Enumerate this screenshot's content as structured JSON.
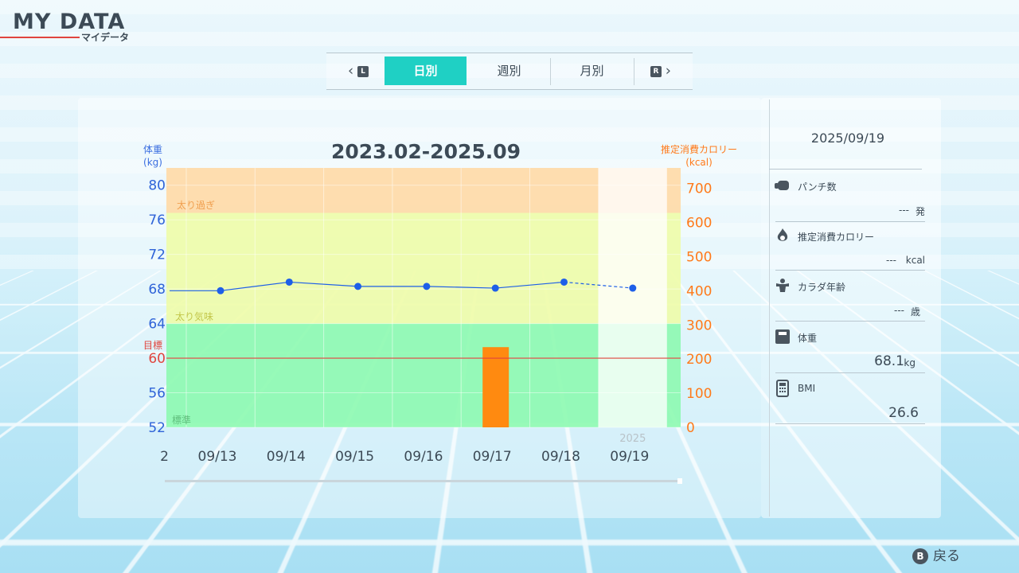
{
  "header": {
    "title": "MY DATA",
    "subtitle": "マイデータ"
  },
  "tabs": {
    "prev_key": "L",
    "next_key": "R",
    "items": [
      {
        "label": "日別",
        "active": true
      },
      {
        "label": "週別",
        "active": false
      },
      {
        "label": "月別",
        "active": false
      }
    ]
  },
  "chart_data": {
    "type": "line",
    "title": "2023.02-2025.09",
    "left_axis": {
      "label_line1": "体重",
      "label_line2": "(kg)",
      "ticks": [
        52,
        56,
        60,
        64,
        68,
        72,
        76,
        80
      ],
      "range": [
        52,
        82
      ]
    },
    "right_axis": {
      "label_line1": "推定消費カロリー",
      "label_line2": "(kcal)",
      "ticks": [
        0,
        100,
        200,
        300,
        400,
        500,
        600,
        700
      ],
      "range": [
        0,
        760
      ]
    },
    "goal": {
      "label": "目標",
      "value": 60
    },
    "zones": [
      {
        "label": "太り過ぎ",
        "from": 76.8,
        "to": 82,
        "color": "#ffd9a6"
      },
      {
        "label": "太り気味",
        "from": 64,
        "to": 76.8,
        "color": "#eefca8"
      },
      {
        "label": "標準",
        "from": 52,
        "to": 64,
        "color": "#8dfab0"
      }
    ],
    "x_partial_label": "2",
    "categories": [
      "09/13",
      "09/14",
      "09/15",
      "09/16",
      "09/17",
      "09/18",
      "09/19"
    ],
    "year_label": "2025",
    "series": [
      {
        "values": [
          67.8,
          68.8,
          68.3,
          68.3,
          68.1,
          68.8,
          68.1
        ],
        "color": "#1e5fe8",
        "last_segment_dashed": true
      },
      {
        "values": [
          0,
          0,
          0,
          0,
          235,
          0,
          0
        ],
        "color": "#ff8a10",
        "kind": "bar"
      }
    ],
    "leading_value": 67.8,
    "highlighted_category": "09/19"
  },
  "side": {
    "date": "2025/09/19",
    "rows": [
      {
        "label": "パンチ数",
        "value": "---",
        "unit": "発",
        "icon": "glove-icon"
      },
      {
        "label": "推定消費カロリー",
        "value": "---",
        "unit": "kcal",
        "icon": "flame-icon"
      },
      {
        "label": "カラダ年齢",
        "value": "---",
        "unit": "歳",
        "icon": "muscle-icon"
      },
      {
        "label": "体重",
        "value": "68.1",
        "unit": "kg",
        "icon": "scale-icon"
      },
      {
        "label": "BMI",
        "value": "26.6",
        "unit": "",
        "icon": "calculator-icon"
      }
    ]
  },
  "footer": {
    "back_key": "B",
    "back_label": "戻る"
  }
}
